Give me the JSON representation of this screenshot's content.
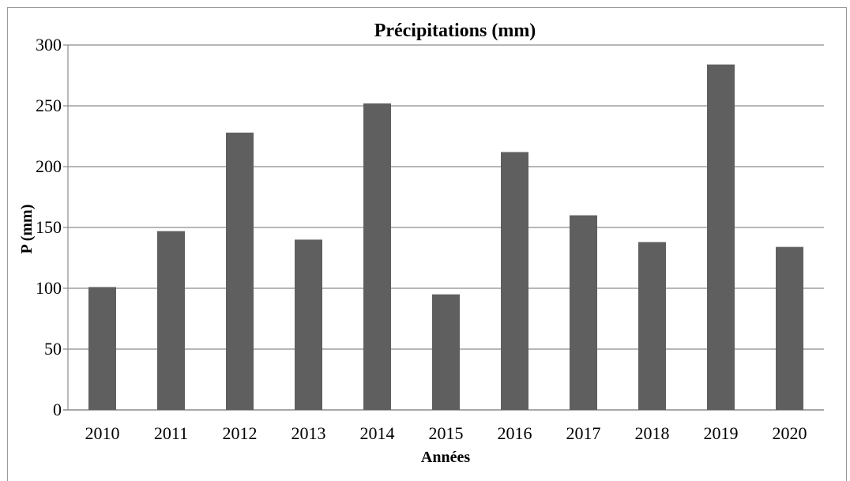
{
  "chart_data": {
    "type": "bar",
    "title": "Précipitations (mm)",
    "xlabel": "Années",
    "ylabel": "P (mm)",
    "categories": [
      "2010",
      "2011",
      "2012",
      "2013",
      "2014",
      "2015",
      "2016",
      "2017",
      "2018",
      "2019",
      "2020"
    ],
    "values": [
      101,
      147,
      228,
      140,
      252,
      95,
      212,
      160,
      138,
      284,
      134
    ],
    "ylim": [
      0,
      300
    ],
    "yticks": [
      "0",
      "50",
      "100",
      "150",
      "200",
      "250",
      "300"
    ],
    "grid": true,
    "legend": "none",
    "colors": {
      "bar": "#5f5f5f",
      "grid": "#8c8c8c",
      "frame": "#9a9a9a"
    }
  }
}
